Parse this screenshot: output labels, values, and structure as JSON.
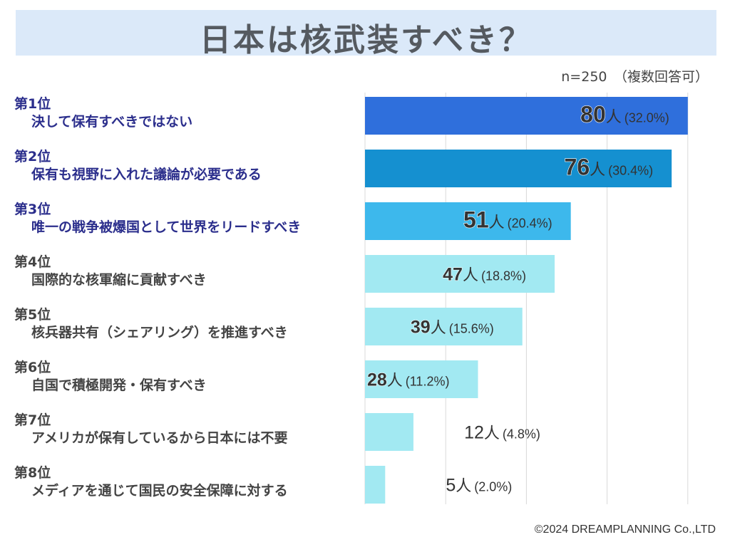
{
  "title": "日本は核武装すべき？",
  "note": "n=250　（複数回答可）",
  "copyright": "©2024 DREAMPLANNING Co.,LTD",
  "chart_data": {
    "type": "bar",
    "orientation": "horizontal",
    "title": "日本は核武装すべき？",
    "unit_label": "人",
    "xlim": [
      0,
      100
    ],
    "grid": true,
    "categories": [
      "決して保有すべきではない",
      "保有も視野に入れた議論が必要である",
      "唯一の戦争被爆国として世界をリードすべき",
      "国際的な核軍縮に貢献すべき",
      "核兵器共有（シェアリング）を推進すべき",
      "自国で積極開発・保有すべき",
      "アメリカが保有しているから日本には不要",
      "メディアを通じて国民の安全保障に対する"
    ],
    "ranks": [
      "第1位",
      "第2位",
      "第3位",
      "第4位",
      "第5位",
      "第6位",
      "第7位",
      "第8位"
    ],
    "values": [
      80,
      76,
      51,
      47,
      39,
      28,
      12,
      5
    ],
    "percents": [
      "(32.0%)",
      "(30.4%)",
      "(20.4%)",
      "(18.8%)",
      "(15.6%)",
      "(11.2%)",
      "(4.8%)",
      "(2.0%)"
    ],
    "colors": [
      "#2f6fdc",
      "#1590d0",
      "#3db8ec",
      "#a2e9f2",
      "#a2e9f2",
      "#a2e9f2",
      "#a2e9f2",
      "#a2e9f2"
    ],
    "label_colors": [
      "#2b2e8c",
      "#2b2e8c",
      "#2b2e8c",
      "#444444",
      "#444444",
      "#444444",
      "#444444",
      "#444444"
    ]
  }
}
